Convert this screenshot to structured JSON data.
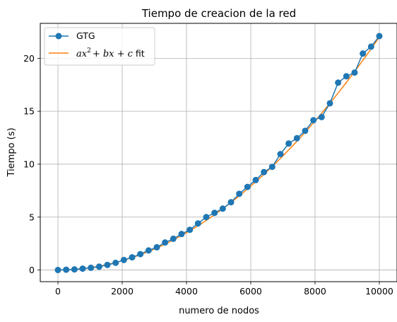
{
  "chart_data": {
    "type": "line",
    "title": "Tiempo de creacion de la red",
    "xlabel": "numero de nodos",
    "ylabel": "Tiempo (s)",
    "xlim": [
      -550,
      10550
    ],
    "ylim": [
      -1.1,
      23.3
    ],
    "xticks": [
      0,
      2000,
      4000,
      6000,
      8000,
      10000
    ],
    "yticks": [
      0,
      5,
      10,
      15,
      20
    ],
    "grid": true,
    "legend_position": "top-left",
    "series": [
      {
        "name": "GTG",
        "color": "#1f77b4",
        "marker": "circle",
        "x": [
          0,
          256,
          513,
          769,
          1026,
          1282,
          1538,
          1795,
          2051,
          2308,
          2564,
          2821,
          3077,
          3333,
          3590,
          3846,
          4103,
          4359,
          4615,
          4872,
          5128,
          5385,
          5641,
          5897,
          6154,
          6410,
          6667,
          6923,
          7179,
          7436,
          7692,
          7949,
          8205,
          8462,
          8718,
          8974,
          9231,
          9487,
          9744,
          10000
        ],
        "y": [
          0.0,
          0.03,
          0.06,
          0.13,
          0.21,
          0.32,
          0.48,
          0.68,
          0.95,
          1.2,
          1.5,
          1.85,
          2.15,
          2.6,
          2.95,
          3.4,
          3.8,
          4.4,
          5.0,
          5.4,
          5.8,
          6.4,
          7.2,
          7.85,
          8.5,
          9.25,
          9.75,
          10.95,
          11.95,
          12.45,
          13.15,
          14.15,
          14.45,
          15.75,
          17.7,
          18.3,
          18.65,
          20.45,
          21.1,
          22.1
        ]
      },
      {
        "name": "$ax^2+bx+c$ fit",
        "color": "#ff7f0e",
        "fit": {
          "a": 2.2e-07,
          "b": 0.0,
          "c": 0.0
        }
      }
    ]
  },
  "legend": {
    "gtg_label": "GTG",
    "fit_a": "ax",
    "fit_sup": "2",
    "fit_rest": "+ bx + c",
    "fit_suffix": " fit"
  }
}
